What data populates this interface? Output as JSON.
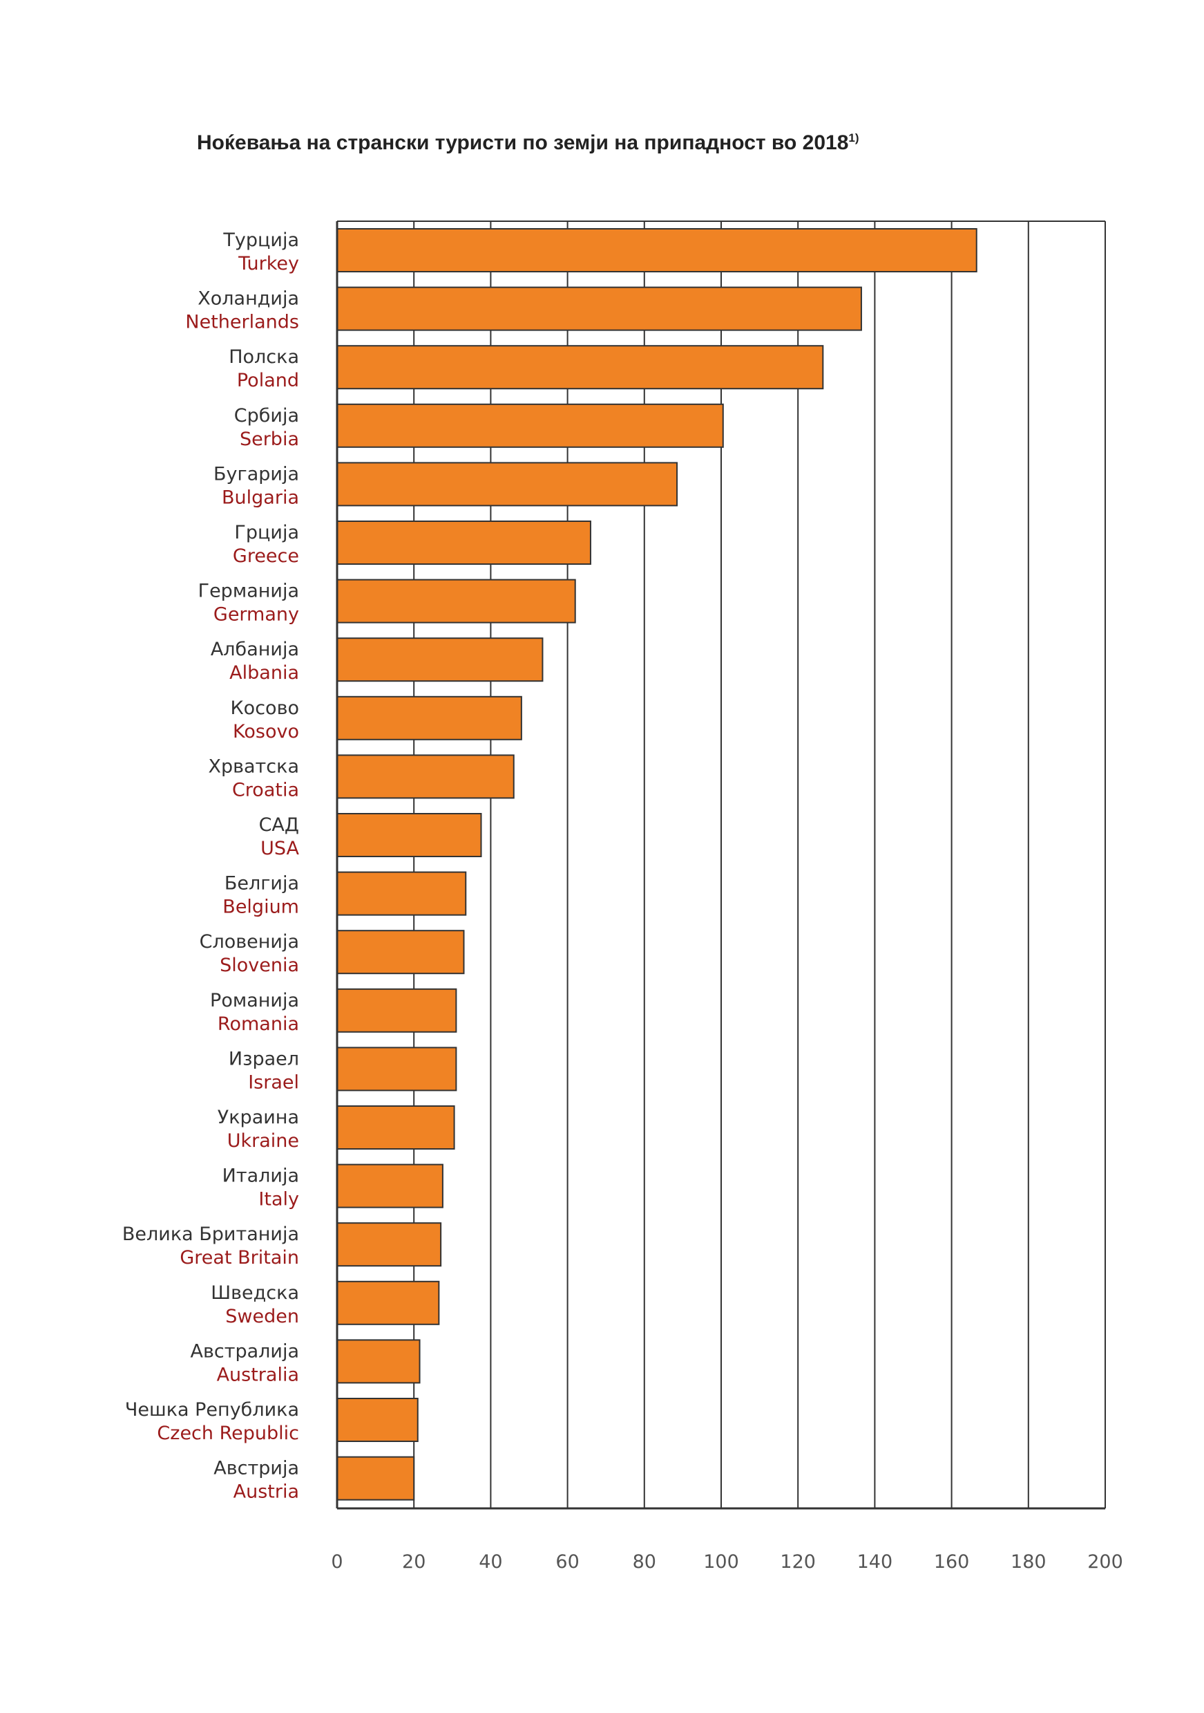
{
  "title": "Ноќевања на странски туристи по земји на припадност во 2018",
  "title_footnote": "1)",
  "colors": {
    "bar": "#f08324",
    "bar_border": "#333333",
    "grid": "#333333",
    "label_en": "#9b1b1b",
    "label_mk": "#333333"
  },
  "chart_data": {
    "type": "bar",
    "orientation": "horizontal",
    "title": "Ноќевања на странски туристи по земји на припадност во 2018",
    "xlim": [
      0,
      200
    ],
    "xticks": [
      0,
      20,
      40,
      60,
      80,
      100,
      120,
      140,
      160,
      180,
      200
    ],
    "grid": true,
    "categories": [
      {
        "mk": "Турција",
        "en": "Turkey",
        "value": 166.5
      },
      {
        "mk": "Холандија",
        "en": "Netherlands",
        "value": 136.5
      },
      {
        "mk": "Полска",
        "en": "Poland",
        "value": 126.5
      },
      {
        "mk": "Србија",
        "en": "Serbia",
        "value": 100.5
      },
      {
        "mk": "Бугарија",
        "en": "Bulgaria",
        "value": 88.5
      },
      {
        "mk": "Грција",
        "en": "Greece",
        "value": 66
      },
      {
        "mk": "Германија",
        "en": "Germany",
        "value": 62
      },
      {
        "mk": "Албанија",
        "en": "Albania",
        "value": 53.5
      },
      {
        "mk": "Косово",
        "en": "Kosovo",
        "value": 48
      },
      {
        "mk": "Хрватска",
        "en": "Croatia",
        "value": 46
      },
      {
        "mk": "САД",
        "en": "USA",
        "value": 37.5
      },
      {
        "mk": "Белгија",
        "en": "Belgium",
        "value": 33.5
      },
      {
        "mk": "Словенија",
        "en": "Slovenia",
        "value": 33
      },
      {
        "mk": "Романија",
        "en": "Romania",
        "value": 31
      },
      {
        "mk": "Израел",
        "en": "Israel",
        "value": 31
      },
      {
        "mk": "Украина",
        "en": "Ukraine",
        "value": 30.5
      },
      {
        "mk": "Италија",
        "en": "Italy",
        "value": 27.5
      },
      {
        "mk": "Велика Британија",
        "en": "Great Britain",
        "value": 27
      },
      {
        "mk": "Шведска",
        "en": "Sweden",
        "value": 26.5
      },
      {
        "mk": "Австралија",
        "en": "Australia",
        "value": 21.5
      },
      {
        "mk": "Чешка Република",
        "en": "Czech Republic",
        "value": 21
      },
      {
        "mk": "Австрија",
        "en": "Austria",
        "value": 20
      }
    ]
  }
}
